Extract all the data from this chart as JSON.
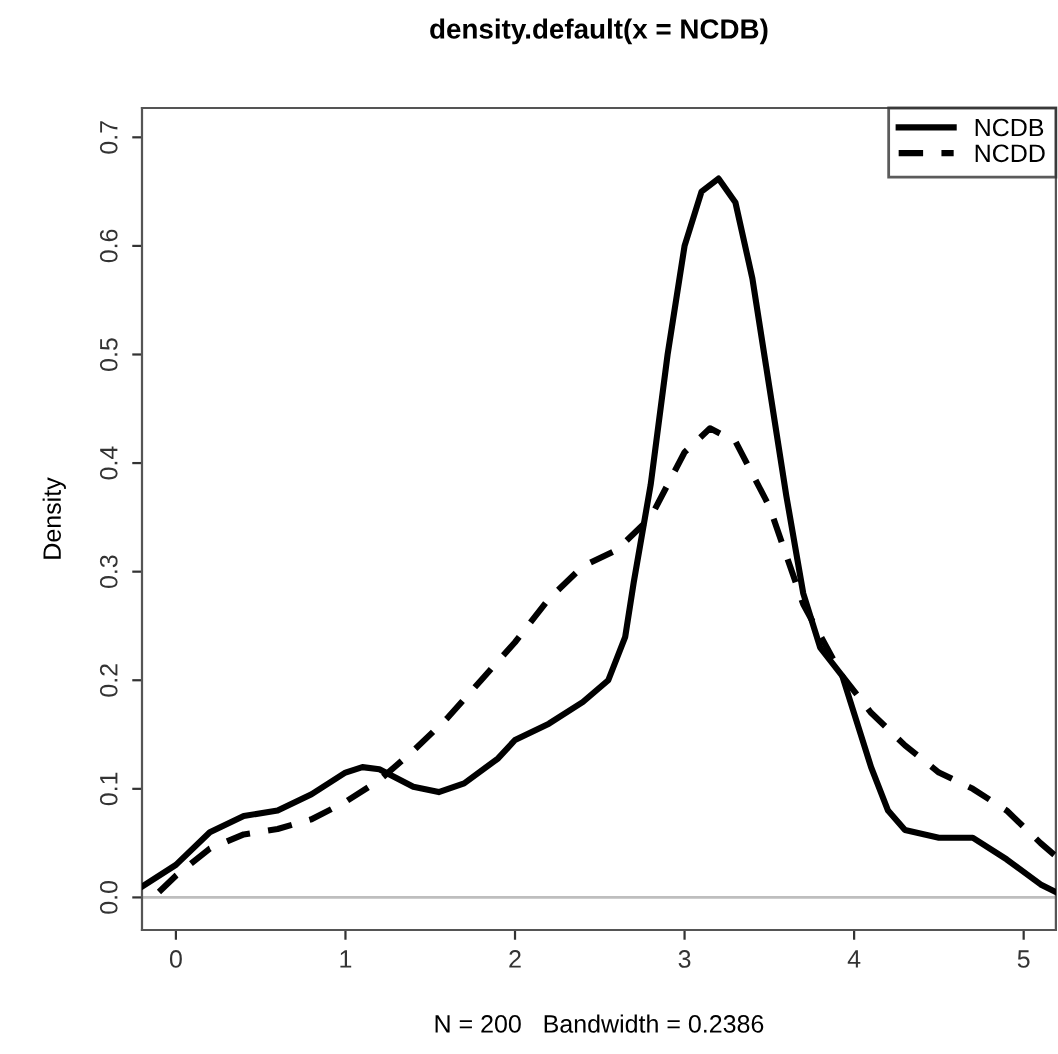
{
  "chart_data": {
    "type": "line",
    "title": "density.default(x = NCDB)",
    "xlabel": "N = 200   Bandwidth = 0.2386",
    "ylabel": "Density",
    "series": [
      {
        "name": "NCDB",
        "color": "#000000",
        "line_style": "solid",
        "x": [
          -0.2,
          0,
          0.2,
          0.4,
          0.6,
          0.8,
          1.0,
          1.1,
          1.2,
          1.4,
          1.55,
          1.7,
          1.9,
          2.0,
          2.2,
          2.4,
          2.55,
          2.65,
          2.7,
          2.8,
          2.9,
          3.0,
          3.1,
          3.2,
          3.3,
          3.4,
          3.5,
          3.6,
          3.7,
          3.8,
          3.93,
          4.1,
          4.2,
          4.3,
          4.5,
          4.7,
          4.9,
          5.1,
          5.19
        ],
        "values": [
          0.01,
          0.03,
          0.06,
          0.075,
          0.08,
          0.095,
          0.115,
          0.12,
          0.118,
          0.102,
          0.097,
          0.105,
          0.128,
          0.145,
          0.16,
          0.18,
          0.2,
          0.24,
          0.29,
          0.38,
          0.5,
          0.6,
          0.65,
          0.662,
          0.64,
          0.57,
          0.47,
          0.37,
          0.28,
          0.23,
          0.204,
          0.12,
          0.08,
          0.062,
          0.055,
          0.055,
          0.035,
          0.012,
          0.005
        ]
      },
      {
        "name": "NCDD",
        "color": "#000000",
        "line_style": "dashed",
        "x": [
          -0.1,
          0,
          0.2,
          0.4,
          0.6,
          0.8,
          1.0,
          1.2,
          1.4,
          1.6,
          1.8,
          2.0,
          2.2,
          2.4,
          2.6,
          2.8,
          3.0,
          3.15,
          3.3,
          3.5,
          3.7,
          3.93,
          4.1,
          4.3,
          4.5,
          4.7,
          4.9,
          5.1,
          5.19
        ],
        "values": [
          0.005,
          0.02,
          0.045,
          0.058,
          0.063,
          0.072,
          0.088,
          0.108,
          0.135,
          0.165,
          0.2,
          0.235,
          0.275,
          0.305,
          0.32,
          0.35,
          0.41,
          0.432,
          0.42,
          0.36,
          0.27,
          0.204,
          0.17,
          0.14,
          0.115,
          0.1,
          0.08,
          0.05,
          0.038
        ]
      }
    ],
    "xlim": [
      -0.2,
      5.19
    ],
    "ylim": [
      -0.03,
      0.727
    ],
    "xticks": [
      0,
      1,
      2,
      3,
      4,
      5
    ],
    "yticks": [
      {
        "value": 0,
        "label": "0.0"
      },
      0.1,
      0.2,
      0.3,
      0.4,
      0.5,
      0.6,
      0.7
    ],
    "ref_lines": [
      {
        "axis": "y",
        "value": 0,
        "color": "#bebebe"
      }
    ],
    "legend": "top right",
    "grid": false
  }
}
